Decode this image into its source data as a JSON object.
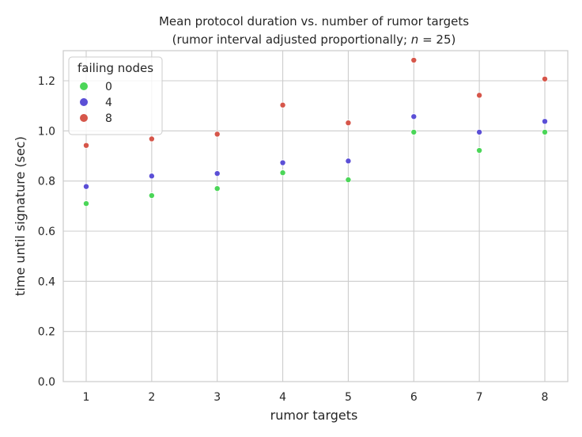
{
  "chart_data": {
    "type": "scatter",
    "title_line1": "Mean protocol duration vs. number of rumor targets",
    "title_line2": "(rumor interval adjusted proportionally; ",
    "title_n_symbol": "n",
    "title_n_value": " = 25)",
    "xlabel": "rumor targets",
    "ylabel": "time until signature (sec)",
    "x": [
      1,
      2,
      3,
      4,
      5,
      6,
      7,
      8
    ],
    "x_ticks": [
      "1",
      "2",
      "3",
      "4",
      "5",
      "6",
      "7",
      "8"
    ],
    "y_ticks": [
      "0.0",
      "0.2",
      "0.4",
      "0.6",
      "0.8",
      "1.0",
      "1.2"
    ],
    "ylim": [
      0,
      1.32
    ],
    "grid": true,
    "legend": {
      "title": "failing nodes",
      "placement": "top-left"
    },
    "series": [
      {
        "name": "0",
        "color": "#4bd658",
        "values": [
          0.71,
          0.742,
          0.77,
          0.833,
          0.805,
          0.995,
          0.922,
          0.995
        ]
      },
      {
        "name": "4",
        "color": "#5b4fd6",
        "values": [
          0.778,
          0.82,
          0.83,
          0.873,
          0.88,
          1.057,
          0.995,
          1.038
        ]
      },
      {
        "name": "8",
        "color": "#d6564a",
        "values": [
          0.942,
          0.968,
          0.987,
          1.103,
          1.032,
          1.282,
          1.142,
          1.207
        ]
      }
    ]
  }
}
